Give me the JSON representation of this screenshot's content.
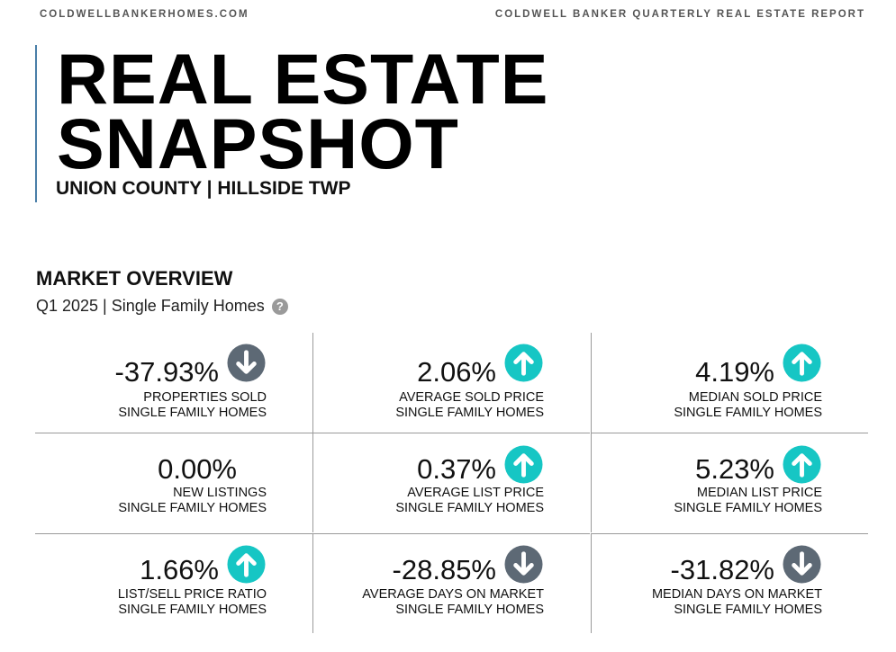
{
  "header": {
    "site": "COLDWELLBANKERHOMES.COM",
    "report": "COLDWELL BANKER QUARTERLY REAL ESTATE REPORT"
  },
  "hero": {
    "title_line1": "REAL ESTATE",
    "title_line2": "SNAPSHOT",
    "subtitle": "UNION COUNTY | HILLSIDE TWP"
  },
  "overview": {
    "title": "MARKET OVERVIEW",
    "subtitle": "Q1 2025 | Single Family Homes",
    "help_icon": "?"
  },
  "colors": {
    "up": "#16c6c4",
    "down": "#5d6975",
    "accent_rule": "#4a7fa8"
  },
  "metrics": [
    {
      "value": "-37.93%",
      "label": "PROPERTIES SOLD",
      "sublabel": "SINGLE FAMILY HOMES",
      "trend": "down"
    },
    {
      "value": "2.06%",
      "label": "AVERAGE SOLD PRICE",
      "sublabel": "SINGLE FAMILY HOMES",
      "trend": "up"
    },
    {
      "value": "4.19%",
      "label": "MEDIAN SOLD PRICE",
      "sublabel": "SINGLE FAMILY HOMES",
      "trend": "up"
    },
    {
      "value": "0.00%",
      "label": "NEW LISTINGS",
      "sublabel": "SINGLE FAMILY HOMES",
      "trend": "none"
    },
    {
      "value": "0.37%",
      "label": "AVERAGE LIST PRICE",
      "sublabel": "SINGLE FAMILY HOMES",
      "trend": "up"
    },
    {
      "value": "5.23%",
      "label": "MEDIAN LIST PRICE",
      "sublabel": "SINGLE FAMILY HOMES",
      "trend": "up"
    },
    {
      "value": "1.66%",
      "label": "LIST/SELL PRICE RATIO",
      "sublabel": "SINGLE FAMILY HOMES",
      "trend": "up"
    },
    {
      "value": "-28.85%",
      "label": "AVERAGE DAYS ON MARKET",
      "sublabel": "SINGLE FAMILY HOMES",
      "trend": "down"
    },
    {
      "value": "-31.82%",
      "label": "MEDIAN DAYS ON MARKET",
      "sublabel": "SINGLE FAMILY HOMES",
      "trend": "down"
    }
  ]
}
